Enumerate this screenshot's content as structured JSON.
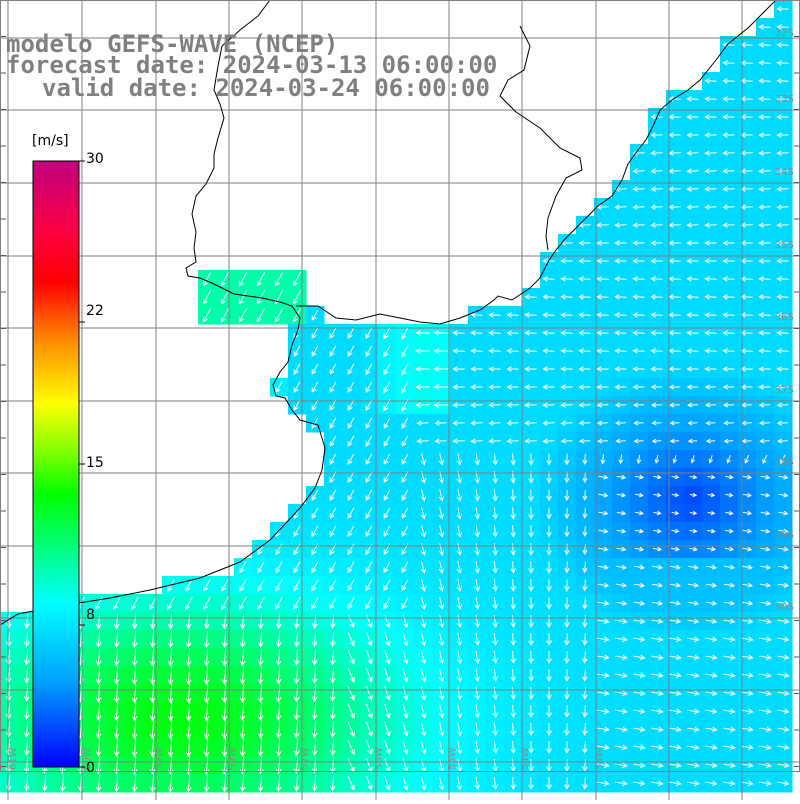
{
  "titles": {
    "line1": "modelo GEFS-WAVE (NCEP)",
    "line2": "forecast date: 2024-03-13 06:00:00",
    "line3": "valid date: 2024-03-24 06:00:00"
  },
  "colorbar": {
    "unit": "[m/s]",
    "ticks": [
      "30",
      "22",
      "15",
      "8",
      "0"
    ],
    "colors": [
      "#0000ff",
      "#00a0ff",
      "#00ffff",
      "#00ff00",
      "#ffff00",
      "#ff8000",
      "#ff0000",
      "#c8007f"
    ]
  },
  "grid": {
    "lat_labels": [
      "32S",
      "33S",
      "34S",
      "35S",
      "36S",
      "37S",
      "38S",
      "39S",
      "40S"
    ],
    "lon_labels": [
      "61W",
      "60W",
      "59W",
      "58W",
      "57W",
      "56W",
      "55W",
      "54W",
      "53W"
    ]
  },
  "field": {
    "min_speed": "0",
    "max_speed": "30",
    "land_color": "#ffffff",
    "coast_color": "#000000"
  }
}
